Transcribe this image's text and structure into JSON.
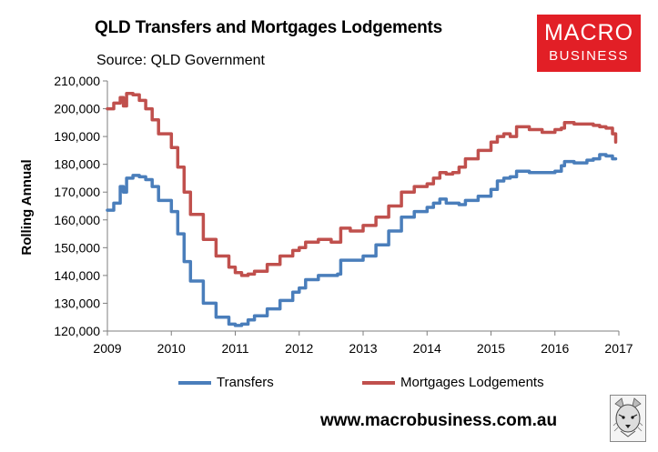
{
  "title": "QLD Transfers and Mortgages Lodgements",
  "subtitle": "Source: QLD Government",
  "logo": {
    "line1": "MACRO",
    "line2": "BUSINESS",
    "color": "#e21f26"
  },
  "footer": {
    "url": "www.macrobusiness.com.au"
  },
  "legend": {
    "placement": "bottom"
  },
  "chart_data": {
    "type": "line",
    "title": "QLD Transfers and Mortgages Lodgements",
    "xlabel": "",
    "ylabel": "Rolling Annual",
    "x": [
      2009.0,
      2009.1,
      2009.2,
      2009.25,
      2009.3,
      2009.4,
      2009.5,
      2009.6,
      2009.7,
      2009.8,
      2010.0,
      2010.1,
      2010.2,
      2010.3,
      2010.5,
      2010.7,
      2010.9,
      2011.0,
      2011.1,
      2011.2,
      2011.3,
      2011.5,
      2011.7,
      2011.9,
      2012.0,
      2012.1,
      2012.3,
      2012.5,
      2012.6,
      2012.65,
      2012.8,
      2013.0,
      2013.2,
      2013.4,
      2013.6,
      2013.8,
      2014.0,
      2014.1,
      2014.2,
      2014.3,
      2014.4,
      2014.5,
      2014.6,
      2014.8,
      2015.0,
      2015.1,
      2015.2,
      2015.3,
      2015.4,
      2015.6,
      2015.8,
      2016.0,
      2016.1,
      2016.15,
      2016.3,
      2016.5,
      2016.6,
      2016.7,
      2016.8,
      2016.9,
      2016.95
    ],
    "x_ticks": [
      "2009",
      "2010",
      "2011",
      "2012",
      "2013",
      "2014",
      "2015",
      "2016",
      "2017"
    ],
    "x_range": [
      2009,
      2017
    ],
    "y_ticks": [
      "120,000",
      "130,000",
      "140,000",
      "150,000",
      "160,000",
      "170,000",
      "180,000",
      "190,000",
      "200,000",
      "210,000"
    ],
    "ylim": [
      120000,
      210000
    ],
    "grid": false,
    "series": [
      {
        "name": "Transfers",
        "color": "#4a7ebb",
        "values": [
          163500,
          166000,
          172000,
          170000,
          175000,
          176000,
          175500,
          174500,
          172000,
          167000,
          163000,
          155000,
          145000,
          138000,
          130000,
          125000,
          122500,
          122000,
          122500,
          124000,
          125500,
          128000,
          131000,
          134000,
          135500,
          138500,
          140000,
          140000,
          140500,
          145500,
          145500,
          147000,
          151000,
          156000,
          161000,
          163000,
          164500,
          166000,
          167500,
          166000,
          166000,
          165500,
          167000,
          168500,
          171000,
          174000,
          175000,
          175500,
          177500,
          177000,
          177000,
          177500,
          179500,
          181000,
          180500,
          181500,
          182000,
          183500,
          183000,
          182000,
          182000
        ]
      },
      {
        "name": "Mortgages Lodgements",
        "color": "#c0504d",
        "values": [
          200000,
          202000,
          204000,
          201000,
          205500,
          205000,
          203000,
          200000,
          196000,
          191000,
          186000,
          179000,
          170000,
          162000,
          153000,
          147000,
          143000,
          141000,
          140000,
          140500,
          141500,
          144000,
          147000,
          149000,
          150000,
          152000,
          153000,
          152000,
          152000,
          157000,
          156000,
          158000,
          161000,
          165000,
          170000,
          172000,
          173000,
          175000,
          177000,
          176500,
          177000,
          179000,
          182000,
          185000,
          188000,
          190000,
          191000,
          190000,
          193500,
          192500,
          191500,
          192500,
          193000,
          195000,
          194500,
          194500,
          194000,
          193500,
          193000,
          191000,
          188000
        ]
      }
    ]
  }
}
